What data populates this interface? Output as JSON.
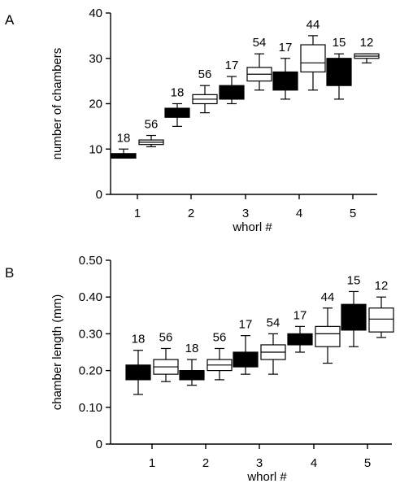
{
  "chart_data": [
    {
      "type": "box",
      "panel_label": "A",
      "xlabel": "whorl #",
      "ylabel": "number of chambers",
      "ylim": [
        0,
        40
      ],
      "yticks": [
        0,
        10,
        20,
        30,
        40
      ],
      "ytick_labels": [
        "0",
        "10",
        "20",
        "30",
        "40"
      ],
      "categories": [
        "1",
        "2",
        "3",
        "4",
        "5"
      ],
      "grid": false,
      "legend": "none",
      "boxes": [
        {
          "whorl": 1,
          "fill": "#000000",
          "count": "18",
          "whisker_low": 8,
          "q1": 8,
          "median": 8.5,
          "q3": 9,
          "whisker_high": 10
        },
        {
          "whorl": 1,
          "fill": "#ffffff",
          "count": "56",
          "whisker_low": 10.5,
          "q1": 11,
          "median": 11.5,
          "q3": 12,
          "whisker_high": 13
        },
        {
          "whorl": 2,
          "fill": "#000000",
          "count": "18",
          "whisker_low": 15,
          "q1": 17,
          "median": 18,
          "q3": 19,
          "whisker_high": 20
        },
        {
          "whorl": 2,
          "fill": "#ffffff",
          "count": "56",
          "whisker_low": 18,
          "q1": 20,
          "median": 21,
          "q3": 22,
          "whisker_high": 24
        },
        {
          "whorl": 3,
          "fill": "#000000",
          "count": "17",
          "whisker_low": 20,
          "q1": 21,
          "median": 22,
          "q3": 24,
          "whisker_high": 26
        },
        {
          "whorl": 3,
          "fill": "#ffffff",
          "count": "54",
          "whisker_low": 23,
          "q1": 25,
          "median": 26.5,
          "q3": 28,
          "whisker_high": 31
        },
        {
          "whorl": 4,
          "fill": "#000000",
          "count": "17",
          "whisker_low": 21,
          "q1": 23,
          "median": 24,
          "q3": 27,
          "whisker_high": 30
        },
        {
          "whorl": 4,
          "fill": "#ffffff",
          "count": "44",
          "whisker_low": 23,
          "q1": 27,
          "median": 29,
          "q3": 33,
          "whisker_high": 35
        },
        {
          "whorl": 5,
          "fill": "#000000",
          "count": "15",
          "whisker_low": 21,
          "q1": 24,
          "median": 27,
          "q3": 30,
          "whisker_high": 31
        },
        {
          "whorl": 5,
          "fill": "#ffffff",
          "count": "12",
          "whisker_low": 29,
          "q1": 30,
          "median": 30.5,
          "q3": 31,
          "whisker_high": 31
        }
      ]
    },
    {
      "type": "box",
      "panel_label": "B",
      "xlabel": "whorl #",
      "ylabel": "chamber length (mm)",
      "ylim": [
        0,
        0.5
      ],
      "yticks": [
        0,
        0.1,
        0.2,
        0.3,
        0.4,
        0.5
      ],
      "ytick_labels": [
        "0",
        "0.10",
        "0.20",
        "0.30",
        "0.40",
        "0.50"
      ],
      "categories": [
        "1",
        "2",
        "3",
        "4",
        "5"
      ],
      "grid": false,
      "legend": "none",
      "boxes": [
        {
          "whorl": 1,
          "fill": "#000000",
          "count": "18",
          "whisker_low": 0.135,
          "q1": 0.175,
          "median": 0.195,
          "q3": 0.215,
          "whisker_high": 0.255
        },
        {
          "whorl": 1,
          "fill": "#ffffff",
          "count": "56",
          "whisker_low": 0.17,
          "q1": 0.19,
          "median": 0.21,
          "q3": 0.23,
          "whisker_high": 0.26
        },
        {
          "whorl": 2,
          "fill": "#000000",
          "count": "18",
          "whisker_low": 0.16,
          "q1": 0.175,
          "median": 0.19,
          "q3": 0.2,
          "whisker_high": 0.23
        },
        {
          "whorl": 2,
          "fill": "#ffffff",
          "count": "56",
          "whisker_low": 0.175,
          "q1": 0.2,
          "median": 0.215,
          "q3": 0.23,
          "whisker_high": 0.26
        },
        {
          "whorl": 3,
          "fill": "#000000",
          "count": "17",
          "whisker_low": 0.19,
          "q1": 0.21,
          "median": 0.235,
          "q3": 0.25,
          "whisker_high": 0.295
        },
        {
          "whorl": 3,
          "fill": "#ffffff",
          "count": "54",
          "whisker_low": 0.19,
          "q1": 0.23,
          "median": 0.25,
          "q3": 0.27,
          "whisker_high": 0.3
        },
        {
          "whorl": 4,
          "fill": "#000000",
          "count": "17",
          "whisker_low": 0.25,
          "q1": 0.27,
          "median": 0.28,
          "q3": 0.3,
          "whisker_high": 0.32
        },
        {
          "whorl": 4,
          "fill": "#ffffff",
          "count": "44",
          "whisker_low": 0.22,
          "q1": 0.265,
          "median": 0.3,
          "q3": 0.32,
          "whisker_high": 0.37
        },
        {
          "whorl": 5,
          "fill": "#000000",
          "count": "15",
          "whisker_low": 0.265,
          "q1": 0.31,
          "median": 0.33,
          "q3": 0.38,
          "whisker_high": 0.415
        },
        {
          "whorl": 5,
          "fill": "#ffffff",
          "count": "12",
          "whisker_low": 0.29,
          "q1": 0.305,
          "median": 0.34,
          "q3": 0.37,
          "whisker_high": 0.4
        }
      ]
    }
  ]
}
